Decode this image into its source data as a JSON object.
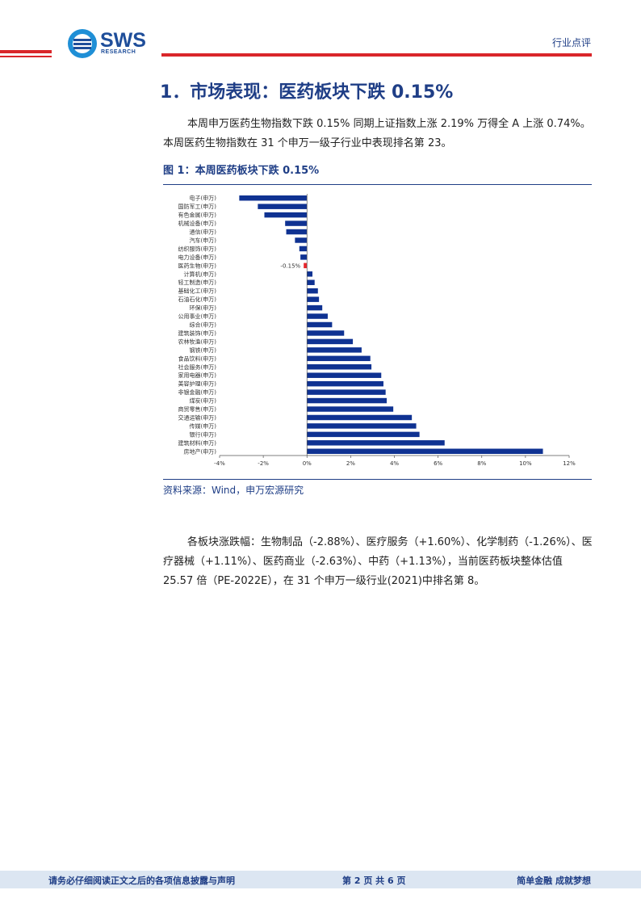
{
  "header": {
    "logo_text": "SWS",
    "logo_sub": "RESEARCH",
    "tag": "行业点评",
    "accent_red": "#d9262a",
    "accent_blue": "#1f3e86"
  },
  "section": {
    "heading": "1．市场表现：医药板块下跌 0.15%",
    "intro": "本周申万医药生物指数下跌 0.15% 同期上证指数上涨 2.19% 万得全 A 上涨 0.74%。本周医药生物指数在 31 个申万一级子行业中表现排名第 23。"
  },
  "figure": {
    "title": "图 1：本周医药板块下跌 0.15%",
    "source": "资料来源：Wind，申万宏源研究"
  },
  "chart_data": {
    "type": "bar",
    "orientation": "horizontal",
    "categories": [
      "电子(申万)",
      "国防军工(申万)",
      "有色金属(申万)",
      "机械设备(申万)",
      "通信(申万)",
      "汽车(申万)",
      "纺织服饰(申万)",
      "电力设备(申万)",
      "医药生物(申万)",
      "计算机(申万)",
      "轻工制造(申万)",
      "基础化工(申万)",
      "石油石化(申万)",
      "环保(申万)",
      "公用事业(申万)",
      "综合(申万)",
      "建筑装饰(申万)",
      "农林牧渔(申万)",
      "钢铁(申万)",
      "食品饮料(申万)",
      "社会服务(申万)",
      "家用电器(申万)",
      "美容护理(申万)",
      "非银金融(申万)",
      "煤炭(申万)",
      "商贸零售(申万)",
      "交通运输(申万)",
      "传媒(申万)",
      "银行(申万)",
      "建筑材料(申万)",
      "房地产(申万)"
    ],
    "values": [
      -3.1,
      -2.25,
      -1.95,
      -1.0,
      -0.95,
      -0.55,
      -0.35,
      -0.3,
      -0.15,
      0.25,
      0.35,
      0.5,
      0.55,
      0.7,
      0.95,
      1.15,
      1.7,
      2.1,
      2.5,
      2.9,
      2.95,
      3.4,
      3.5,
      3.6,
      3.65,
      3.95,
      4.8,
      5.0,
      5.15,
      6.3,
      10.8
    ],
    "highlight_category": "医药生物(申万)",
    "highlight_label": "-0.15%",
    "xlim": [
      -4,
      12
    ],
    "xticks": [
      "-4%",
      "-2%",
      "0%",
      "2%",
      "4%",
      "6%",
      "8%",
      "10%",
      "12%"
    ],
    "xtick_values": [
      -4,
      -2,
      0,
      2,
      4,
      6,
      8,
      10,
      12
    ],
    "bar_color": "#0f3292",
    "highlight_color": "#e8262c",
    "grid": false
  },
  "analysis": {
    "text": "各板块涨跌幅：生物制品（-2.88%）、医疗服务（+1.60%）、化学制药（-1.26%）、医疗器械（+1.11%）、医药商业（-2.63%）、中药（+1.13%），当前医药板块整体估值 25.57 倍（PE-2022E），在 31 个申万一级行业(2021)中排名第 8。"
  },
  "footer": {
    "left": "请务必仔细阅读正文之后的各项信息披露与声明",
    "middle": "第 2 页 共 6 页",
    "right": "简单金融 成就梦想"
  }
}
